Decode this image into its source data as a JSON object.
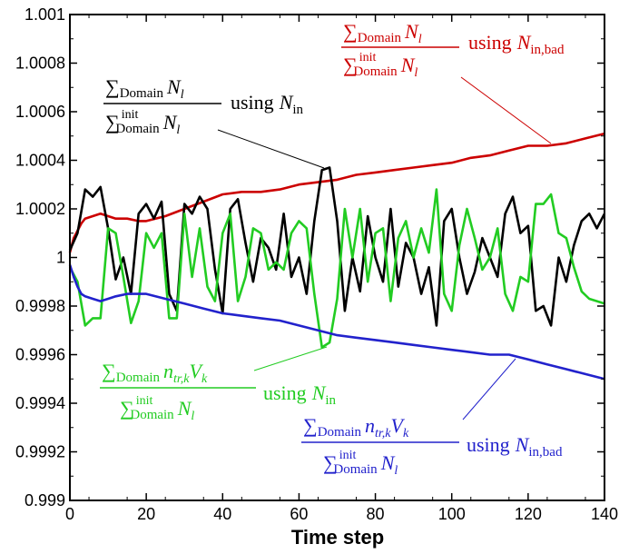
{
  "chart_data": {
    "type": "line",
    "title": "",
    "xlabel": "Time step",
    "ylabel": "",
    "xlim": [
      0,
      140
    ],
    "ylim": [
      0.999,
      1.001
    ],
    "xticks": [
      0,
      20,
      40,
      60,
      80,
      100,
      120,
      140
    ],
    "xtick_labels": [
      "0",
      "20",
      "40",
      "60",
      "80",
      "100",
      "120",
      "140"
    ],
    "yticks": [
      0.999,
      0.9992,
      0.9994,
      0.9996,
      0.9998,
      1.0,
      1.0002,
      1.0004,
      1.0006,
      1.0008,
      1.001
    ],
    "ytick_labels": [
      "0.999",
      "0.9992",
      "0.9994",
      "0.9996",
      "0.9998",
      "1",
      "1.0002",
      "1.0004",
      "1.0006",
      "1.0008",
      "1.001"
    ],
    "grid": false,
    "series": [
      {
        "name": "ΣDomain Nl / Σinit Domain Nl using Nin,bad",
        "color": "#cc0000",
        "x": [
          0,
          1,
          2,
          3,
          4,
          6,
          8,
          10,
          12,
          15,
          18,
          20,
          25,
          30,
          35,
          40,
          45,
          50,
          55,
          60,
          65,
          70,
          75,
          80,
          85,
          90,
          95,
          100,
          105,
          110,
          115,
          120,
          125,
          130,
          135,
          140
        ],
        "y": [
          1.00002,
          1.00008,
          1.00011,
          1.00014,
          1.00016,
          1.00017,
          1.00018,
          1.00017,
          1.00016,
          1.00016,
          1.00015,
          1.00015,
          1.00017,
          1.0002,
          1.00023,
          1.00026,
          1.00027,
          1.00027,
          1.00028,
          1.0003,
          1.00031,
          1.00032,
          1.00034,
          1.00035,
          1.00036,
          1.00037,
          1.00038,
          1.00039,
          1.00041,
          1.00042,
          1.00044,
          1.00046,
          1.00046,
          1.00047,
          1.00049,
          1.00051
        ]
      },
      {
        "name": "ΣDomain Nl / Σinit Domain Nl using Nin",
        "color": "#000000",
        "x": [
          0,
          2,
          4,
          6,
          8,
          10,
          12,
          14,
          16,
          18,
          20,
          22,
          24,
          26,
          28,
          30,
          32,
          34,
          36,
          38,
          40,
          42,
          44,
          46,
          48,
          50,
          52,
          54,
          56,
          58,
          60,
          62,
          64,
          66,
          68,
          70,
          72,
          74,
          76,
          78,
          80,
          82,
          84,
          86,
          88,
          90,
          92,
          94,
          96,
          98,
          100,
          102,
          104,
          106,
          108,
          110,
          112,
          114,
          116,
          118,
          120,
          122,
          124,
          126,
          128,
          130,
          132,
          134,
          136,
          138,
          140
        ],
        "y": [
          1.00003,
          1.0001,
          1.00028,
          1.00025,
          1.00029,
          1.00012,
          0.99991,
          1.0,
          0.99985,
          1.00018,
          1.00022,
          1.00016,
          1.00023,
          0.99985,
          0.99978,
          1.00022,
          1.00018,
          1.00025,
          1.0002,
          0.99995,
          0.99977,
          1.0002,
          1.00024,
          1.00006,
          0.9999,
          1.00008,
          1.00004,
          0.99995,
          1.00018,
          0.99992,
          1.0,
          0.99985,
          1.00015,
          1.00036,
          1.00037,
          1.00015,
          0.99978,
          1.0,
          0.99986,
          1.00017,
          1.0,
          0.9999,
          1.0002,
          0.99988,
          1.00006,
          1.0,
          0.99985,
          0.99996,
          0.99972,
          1.00015,
          1.0002,
          1.0,
          0.99985,
          0.99994,
          1.00008,
          1.0,
          0.99992,
          1.00018,
          1.00025,
          1.0001,
          1.00013,
          0.99978,
          0.9998,
          0.99972,
          1.0,
          0.9999,
          1.00005,
          1.00015,
          1.00018,
          1.00012,
          1.00018
        ]
      },
      {
        "name": "ΣDomain ntr,k Vk / Σinit Domain Nl using Nin",
        "color": "#22cc22",
        "x": [
          0,
          2,
          4,
          6,
          8,
          10,
          12,
          14,
          16,
          18,
          20,
          22,
          24,
          26,
          28,
          30,
          32,
          34,
          36,
          38,
          40,
          42,
          44,
          46,
          48,
          50,
          52,
          54,
          56,
          58,
          60,
          62,
          64,
          66,
          68,
          70,
          72,
          74,
          76,
          78,
          80,
          82,
          84,
          86,
          88,
          90,
          92,
          94,
          96,
          98,
          100,
          102,
          104,
          106,
          108,
          110,
          112,
          114,
          116,
          118,
          120,
          122,
          124,
          126,
          128,
          130,
          132,
          134,
          136,
          138,
          140
        ],
        "y": [
          0.99996,
          0.9999,
          0.99972,
          0.99975,
          0.99975,
          1.00012,
          1.0001,
          0.99992,
          0.99973,
          0.99982,
          1.0001,
          1.00004,
          1.0001,
          0.99975,
          0.99975,
          1.00018,
          0.99992,
          1.00012,
          0.99988,
          0.99982,
          1.0001,
          1.00018,
          0.99982,
          0.99992,
          1.00012,
          1.0001,
          0.99995,
          0.99998,
          0.99995,
          1.0001,
          1.00015,
          1.00012,
          0.99985,
          0.99963,
          0.99965,
          0.99983,
          1.0002,
          1.0,
          1.0002,
          0.9999,
          1.0001,
          1.00012,
          0.99982,
          1.00008,
          1.00015,
          1.0,
          1.00012,
          1.00002,
          1.00028,
          0.99985,
          0.99978,
          1.00005,
          1.0002,
          1.00008,
          0.99995,
          1.0,
          1.00012,
          0.99985,
          0.99978,
          0.99992,
          0.9999,
          1.00022,
          1.00022,
          1.00026,
          1.0001,
          1.00008,
          0.99996,
          0.99986,
          0.99983,
          0.99982,
          0.99981
        ]
      },
      {
        "name": "ΣDomain ntr,k Vk / Σinit Domain Nl using Nin,bad",
        "color": "#2222cc",
        "x": [
          0,
          1,
          2,
          3,
          4,
          6,
          8,
          10,
          12,
          15,
          18,
          20,
          25,
          30,
          35,
          40,
          45,
          50,
          55,
          60,
          65,
          70,
          75,
          80,
          85,
          90,
          95,
          100,
          105,
          110,
          115,
          120,
          125,
          130,
          135,
          140
        ],
        "y": [
          0.99997,
          0.99992,
          0.99988,
          0.99985,
          0.99984,
          0.99983,
          0.99982,
          0.99983,
          0.99984,
          0.99985,
          0.99985,
          0.99985,
          0.99983,
          0.99981,
          0.99979,
          0.99977,
          0.99976,
          0.99975,
          0.99974,
          0.99972,
          0.9997,
          0.99968,
          0.99967,
          0.99966,
          0.99965,
          0.99964,
          0.99963,
          0.99962,
          0.99961,
          0.9996,
          0.9996,
          0.99958,
          0.99956,
          0.99954,
          0.99952,
          0.9995
        ]
      }
    ]
  },
  "annotations": {
    "red": {
      "num_sum": "∑",
      "num_sub": "Domain",
      "num_var": "N",
      "num_var_sub": "l",
      "den_sum": "∑",
      "den_sup": "init",
      "den_sub": "Domain",
      "den_var": "N",
      "den_var_sub": "l",
      "using": "using",
      "n_var": "N",
      "n_sub": "in,bad"
    },
    "black": {
      "num_sum": "∑",
      "num_sub": "Domain",
      "num_var": "N",
      "num_var_sub": "l",
      "den_sum": "∑",
      "den_sup": "init",
      "den_sub": "Domain",
      "den_var": "N",
      "den_var_sub": "l",
      "using": "using",
      "n_var": "N",
      "n_sub": "in"
    },
    "green": {
      "num_sum": "∑",
      "num_sub": "Domain",
      "num_var": "n",
      "num_var_sub": "tr,k",
      "num_var2": "V",
      "num_var2_sub": "k",
      "den_sum": "∑",
      "den_sup": "init",
      "den_sub": "Domain",
      "den_var": "N",
      "den_var_sub": "l",
      "using": "using",
      "n_var": "N",
      "n_sub": "in"
    },
    "blue": {
      "num_sum": "∑",
      "num_sub": "Domain",
      "num_var": "n",
      "num_var_sub": "tr,k",
      "num_var2": "V",
      "num_var2_sub": "k",
      "den_sum": "∑",
      "den_sup": "init",
      "den_sub": "Domain",
      "den_var": "N",
      "den_var_sub": "l",
      "using": "using",
      "n_var": "N",
      "n_sub": "in,bad"
    }
  }
}
